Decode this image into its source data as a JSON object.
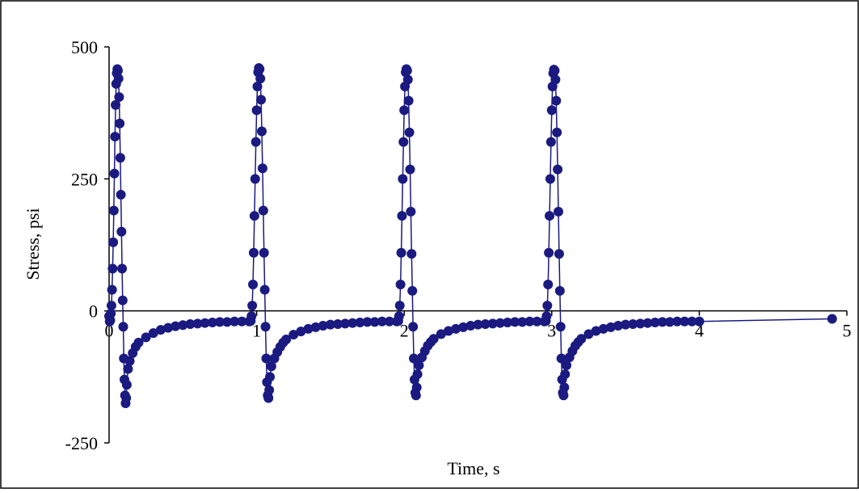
{
  "chart_data": {
    "type": "scatter",
    "title": "",
    "xlabel": "Time, s",
    "ylabel": "Stress, psi",
    "xlim": [
      0,
      5
    ],
    "ylim": [
      -250,
      500
    ],
    "x_ticks": [
      0,
      1,
      2,
      3,
      4,
      5
    ],
    "y_ticks": [
      -250,
      0,
      250,
      500
    ],
    "x_tick_labels": [
      "0",
      "1",
      "2",
      "3",
      "4",
      "5"
    ],
    "y_tick_labels": [
      "-250",
      "0",
      "250",
      "500"
    ],
    "grid": false,
    "legend": "none",
    "marker_color": "#1a1a80",
    "line_color": "#1a1a80",
    "axis_color": "#000000",
    "series": [
      {
        "name": "",
        "points": [
          [
            0.0,
            -10
          ],
          [
            0.004,
            -20
          ],
          [
            0.008,
            -18
          ],
          [
            0.012,
            -5
          ],
          [
            0.016,
            10
          ],
          [
            0.02,
            40
          ],
          [
            0.024,
            80
          ],
          [
            0.028,
            130
          ],
          [
            0.032,
            190
          ],
          [
            0.036,
            260
          ],
          [
            0.04,
            330
          ],
          [
            0.044,
            390
          ],
          [
            0.048,
            430
          ],
          [
            0.052,
            450
          ],
          [
            0.056,
            458
          ],
          [
            0.06,
            455
          ],
          [
            0.064,
            440
          ],
          [
            0.068,
            405
          ],
          [
            0.072,
            355
          ],
          [
            0.076,
            290
          ],
          [
            0.08,
            220
          ],
          [
            0.084,
            150
          ],
          [
            0.088,
            80
          ],
          [
            0.092,
            20
          ],
          [
            0.096,
            -30
          ],
          [
            0.1,
            -90
          ],
          [
            0.104,
            -130
          ],
          [
            0.108,
            -160
          ],
          [
            0.112,
            -175
          ],
          [
            0.116,
            -165
          ],
          [
            0.12,
            -140
          ],
          [
            0.128,
            -110
          ],
          [
            0.14,
            -95
          ],
          [
            0.16,
            -80
          ],
          [
            0.18,
            -68
          ],
          [
            0.2,
            -60
          ],
          [
            0.25,
            -50
          ],
          [
            0.3,
            -42
          ],
          [
            0.35,
            -36
          ],
          [
            0.4,
            -32
          ],
          [
            0.45,
            -29
          ],
          [
            0.5,
            -27
          ],
          [
            0.55,
            -25
          ],
          [
            0.6,
            -24
          ],
          [
            0.65,
            -23
          ],
          [
            0.7,
            -22
          ],
          [
            0.75,
            -21
          ],
          [
            0.8,
            -21
          ],
          [
            0.85,
            -20
          ],
          [
            0.9,
            -20
          ],
          [
            0.95,
            -20
          ],
          [
            0.96,
            -19
          ],
          [
            0.965,
            -10
          ],
          [
            0.97,
            10
          ],
          [
            0.975,
            50
          ],
          [
            0.98,
            110
          ],
          [
            0.985,
            180
          ],
          [
            0.99,
            250
          ],
          [
            0.995,
            320
          ],
          [
            1.0,
            380
          ],
          [
            1.005,
            425
          ],
          [
            1.01,
            452
          ],
          [
            1.015,
            460
          ],
          [
            1.02,
            458
          ],
          [
            1.025,
            440
          ],
          [
            1.03,
            400
          ],
          [
            1.035,
            340
          ],
          [
            1.04,
            270
          ],
          [
            1.045,
            190
          ],
          [
            1.05,
            110
          ],
          [
            1.055,
            40
          ],
          [
            1.06,
            -30
          ],
          [
            1.065,
            -90
          ],
          [
            1.07,
            -135
          ],
          [
            1.075,
            -160
          ],
          [
            1.08,
            -165
          ],
          [
            1.085,
            -150
          ],
          [
            1.09,
            -125
          ],
          [
            1.1,
            -105
          ],
          [
            1.12,
            -90
          ],
          [
            1.14,
            -78
          ],
          [
            1.16,
            -68
          ],
          [
            1.18,
            -60
          ],
          [
            1.2,
            -54
          ],
          [
            1.25,
            -45
          ],
          [
            1.3,
            -39
          ],
          [
            1.35,
            -34
          ],
          [
            1.4,
            -31
          ],
          [
            1.45,
            -28
          ],
          [
            1.5,
            -26
          ],
          [
            1.55,
            -25
          ],
          [
            1.6,
            -24
          ],
          [
            1.65,
            -23
          ],
          [
            1.7,
            -22
          ],
          [
            1.75,
            -21
          ],
          [
            1.8,
            -21
          ],
          [
            1.85,
            -20
          ],
          [
            1.9,
            -20
          ],
          [
            1.95,
            -20
          ],
          [
            1.96,
            -19
          ],
          [
            1.965,
            -10
          ],
          [
            1.97,
            10
          ],
          [
            1.975,
            50
          ],
          [
            1.98,
            110
          ],
          [
            1.985,
            180
          ],
          [
            1.99,
            250
          ],
          [
            1.995,
            320
          ],
          [
            2.0,
            380
          ],
          [
            2.005,
            425
          ],
          [
            2.01,
            452
          ],
          [
            2.015,
            458
          ],
          [
            2.02,
            455
          ],
          [
            2.025,
            438
          ],
          [
            2.03,
            398
          ],
          [
            2.035,
            338
          ],
          [
            2.04,
            268
          ],
          [
            2.045,
            188
          ],
          [
            2.05,
            108
          ],
          [
            2.055,
            38
          ],
          [
            2.06,
            -30
          ],
          [
            2.065,
            -90
          ],
          [
            2.07,
            -130
          ],
          [
            2.075,
            -155
          ],
          [
            2.08,
            -160
          ],
          [
            2.085,
            -145
          ],
          [
            2.09,
            -120
          ],
          [
            2.1,
            -103
          ],
          [
            2.12,
            -88
          ],
          [
            2.14,
            -76
          ],
          [
            2.16,
            -66
          ],
          [
            2.18,
            -59
          ],
          [
            2.2,
            -53
          ],
          [
            2.25,
            -44
          ],
          [
            2.3,
            -38
          ],
          [
            2.35,
            -34
          ],
          [
            2.4,
            -31
          ],
          [
            2.45,
            -28
          ],
          [
            2.5,
            -26
          ],
          [
            2.55,
            -25
          ],
          [
            2.6,
            -24
          ],
          [
            2.65,
            -23
          ],
          [
            2.7,
            -22
          ],
          [
            2.75,
            -21
          ],
          [
            2.8,
            -21
          ],
          [
            2.85,
            -20
          ],
          [
            2.9,
            -20
          ],
          [
            2.95,
            -20
          ],
          [
            2.96,
            -19
          ],
          [
            2.965,
            -10
          ],
          [
            2.97,
            10
          ],
          [
            2.975,
            50
          ],
          [
            2.98,
            110
          ],
          [
            2.985,
            180
          ],
          [
            2.99,
            250
          ],
          [
            2.995,
            320
          ],
          [
            3.0,
            380
          ],
          [
            3.005,
            425
          ],
          [
            3.01,
            450
          ],
          [
            3.015,
            457
          ],
          [
            3.02,
            455
          ],
          [
            3.025,
            438
          ],
          [
            3.03,
            398
          ],
          [
            3.035,
            338
          ],
          [
            3.04,
            268
          ],
          [
            3.045,
            188
          ],
          [
            3.05,
            108
          ],
          [
            3.055,
            38
          ],
          [
            3.06,
            -30
          ],
          [
            3.065,
            -90
          ],
          [
            3.07,
            -130
          ],
          [
            3.075,
            -155
          ],
          [
            3.08,
            -160
          ],
          [
            3.085,
            -145
          ],
          [
            3.09,
            -120
          ],
          [
            3.1,
            -103
          ],
          [
            3.12,
            -88
          ],
          [
            3.14,
            -76
          ],
          [
            3.16,
            -66
          ],
          [
            3.18,
            -59
          ],
          [
            3.2,
            -53
          ],
          [
            3.25,
            -44
          ],
          [
            3.3,
            -38
          ],
          [
            3.35,
            -34
          ],
          [
            3.4,
            -31
          ],
          [
            3.45,
            -28
          ],
          [
            3.5,
            -26
          ],
          [
            3.55,
            -25
          ],
          [
            3.6,
            -24
          ],
          [
            3.65,
            -23
          ],
          [
            3.7,
            -22
          ],
          [
            3.75,
            -21
          ],
          [
            3.8,
            -21
          ],
          [
            3.85,
            -20
          ],
          [
            3.9,
            -20
          ],
          [
            3.95,
            -20
          ],
          [
            4.0,
            -20
          ],
          [
            4.9,
            -15
          ]
        ]
      }
    ]
  }
}
